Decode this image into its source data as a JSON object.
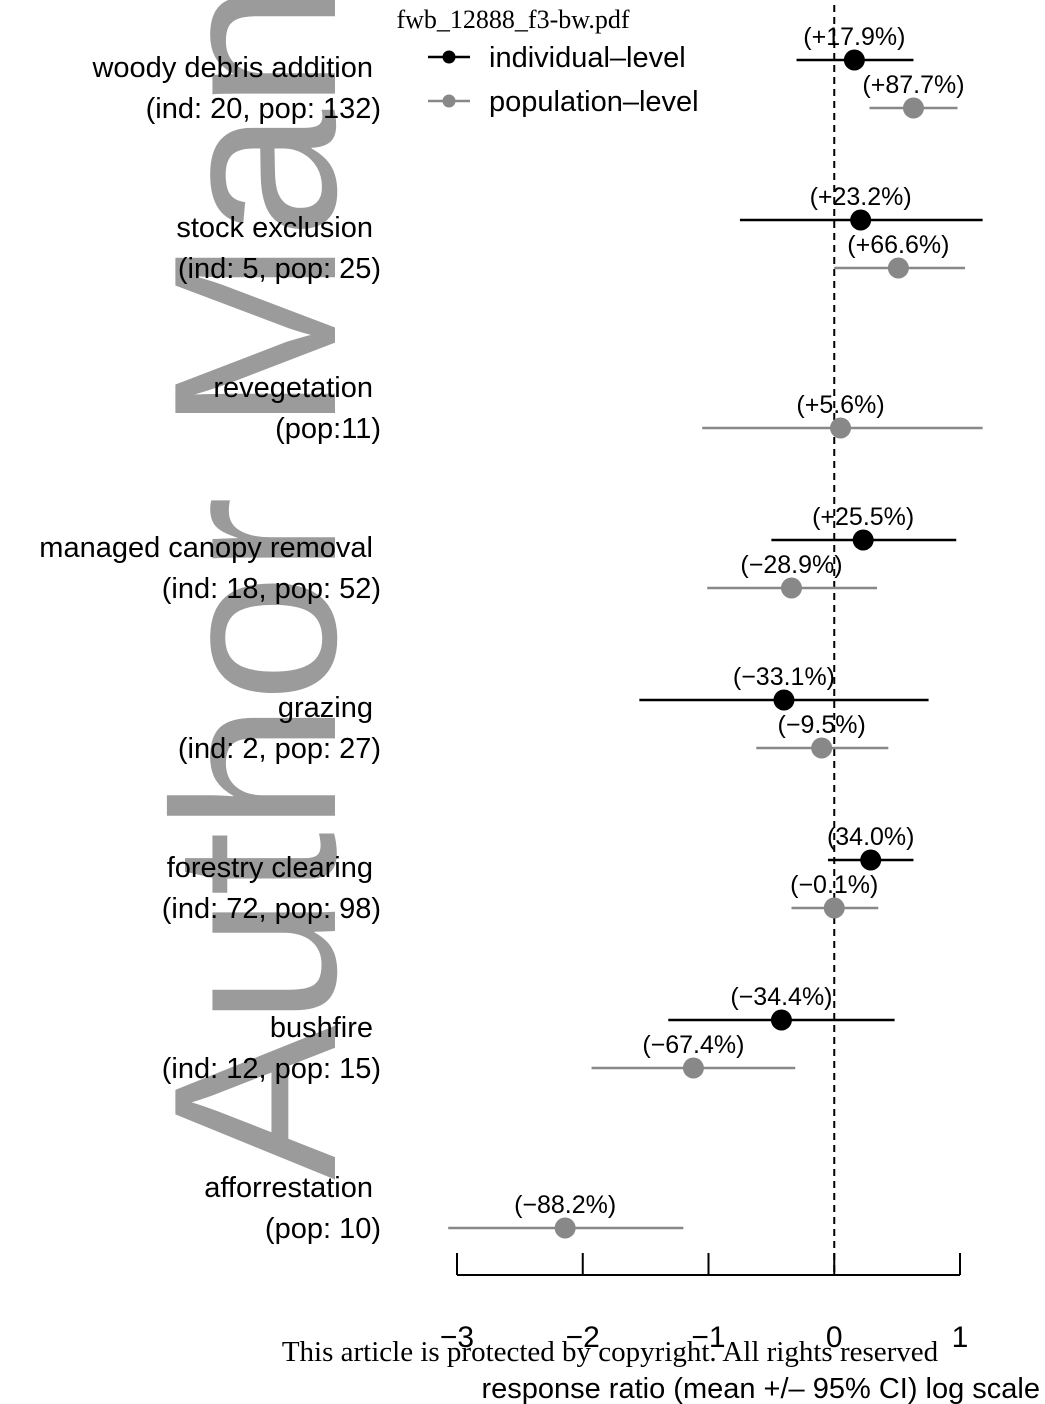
{
  "file_title": "fwb_12888_f3-bw.pdf",
  "footer_notice": "This article is protected by copyright. All rights reserved",
  "watermark": "Author Manuscript",
  "colors": {
    "individual": "#000000",
    "population": "#888888",
    "watermark": "#9b9b9b"
  },
  "chart_data": {
    "type": "scatter",
    "subtype": "forest-plot",
    "xlabel": "response ratio (mean +/– 95% CI) log scale",
    "xlim": [
      -3,
      1
    ],
    "xticks": [
      -3,
      -2,
      -1,
      0,
      1
    ],
    "xtick_labels": [
      "−3",
      "−2",
      "−1",
      "0",
      "1"
    ],
    "reference_line_x": 0,
    "legend": {
      "position": "top-center",
      "entries": [
        {
          "key": "individual",
          "label": "individual–level"
        },
        {
          "key": "population",
          "label": "population–level"
        }
      ]
    },
    "groups": [
      {
        "name": "woody debris addition",
        "counts": "(ind: 20, pop: 132)",
        "estimates": [
          {
            "series": "individual",
            "mean": 0.16,
            "lo": -0.3,
            "hi": 0.63,
            "label": "(+17.9%)"
          },
          {
            "series": "population",
            "mean": 0.63,
            "lo": 0.28,
            "hi": 0.98,
            "label": "(+87.7%)"
          }
        ]
      },
      {
        "name": "stock exclusion",
        "counts": "(ind: 5, pop: 25)",
        "estimates": [
          {
            "series": "individual",
            "mean": 0.21,
            "lo": -0.75,
            "hi": 1.18,
            "label": "(+23.2%)"
          },
          {
            "series": "population",
            "mean": 0.51,
            "lo": 0.0,
            "hi": 1.04,
            "label": "(+66.6%)"
          }
        ]
      },
      {
        "name": "revegetation",
        "counts": "(pop:11)",
        "estimates": [
          {
            "series": "population",
            "mean": 0.05,
            "lo": -1.05,
            "hi": 1.18,
            "label": "(+5.6%)"
          }
        ]
      },
      {
        "name": "managed canopy removal",
        "counts": "(ind: 18, pop: 52)",
        "estimates": [
          {
            "series": "individual",
            "mean": 0.23,
            "lo": -0.5,
            "hi": 0.97,
            "label": "(+25.5%)"
          },
          {
            "series": "population",
            "mean": -0.34,
            "lo": -1.01,
            "hi": 0.34,
            "label": "(−28.9%)"
          }
        ]
      },
      {
        "name": "grazing",
        "counts": "(ind: 2, pop: 27)",
        "estimates": [
          {
            "series": "individual",
            "mean": -0.4,
            "lo": -1.55,
            "hi": 0.75,
            "label": "(−33.1%)"
          },
          {
            "series": "population",
            "mean": -0.1,
            "lo": -0.62,
            "hi": 0.43,
            "label": "(−9.5%)"
          }
        ]
      },
      {
        "name": "forestry clearing",
        "counts": "(ind: 72, pop: 98)",
        "estimates": [
          {
            "series": "individual",
            "mean": 0.29,
            "lo": -0.05,
            "hi": 0.63,
            "label": "(34.0%)"
          },
          {
            "series": "population",
            "mean": 0.0,
            "lo": -0.34,
            "hi": 0.35,
            "label": "(−0.1%)"
          }
        ]
      },
      {
        "name": "bushfire",
        "counts": "(ind: 12, pop: 15)",
        "estimates": [
          {
            "series": "individual",
            "mean": -0.42,
            "lo": -1.32,
            "hi": 0.48,
            "label": "(−34.4%)"
          },
          {
            "series": "population",
            "mean": -1.12,
            "lo": -1.93,
            "hi": -0.31,
            "label": "(−67.4%)"
          }
        ]
      },
      {
        "name": "afforrestation",
        "counts": "(pop: 10)",
        "estimates": [
          {
            "series": "population",
            "mean": -2.14,
            "lo": -3.07,
            "hi": -1.2,
            "label": "(−88.2%)"
          }
        ]
      }
    ]
  }
}
